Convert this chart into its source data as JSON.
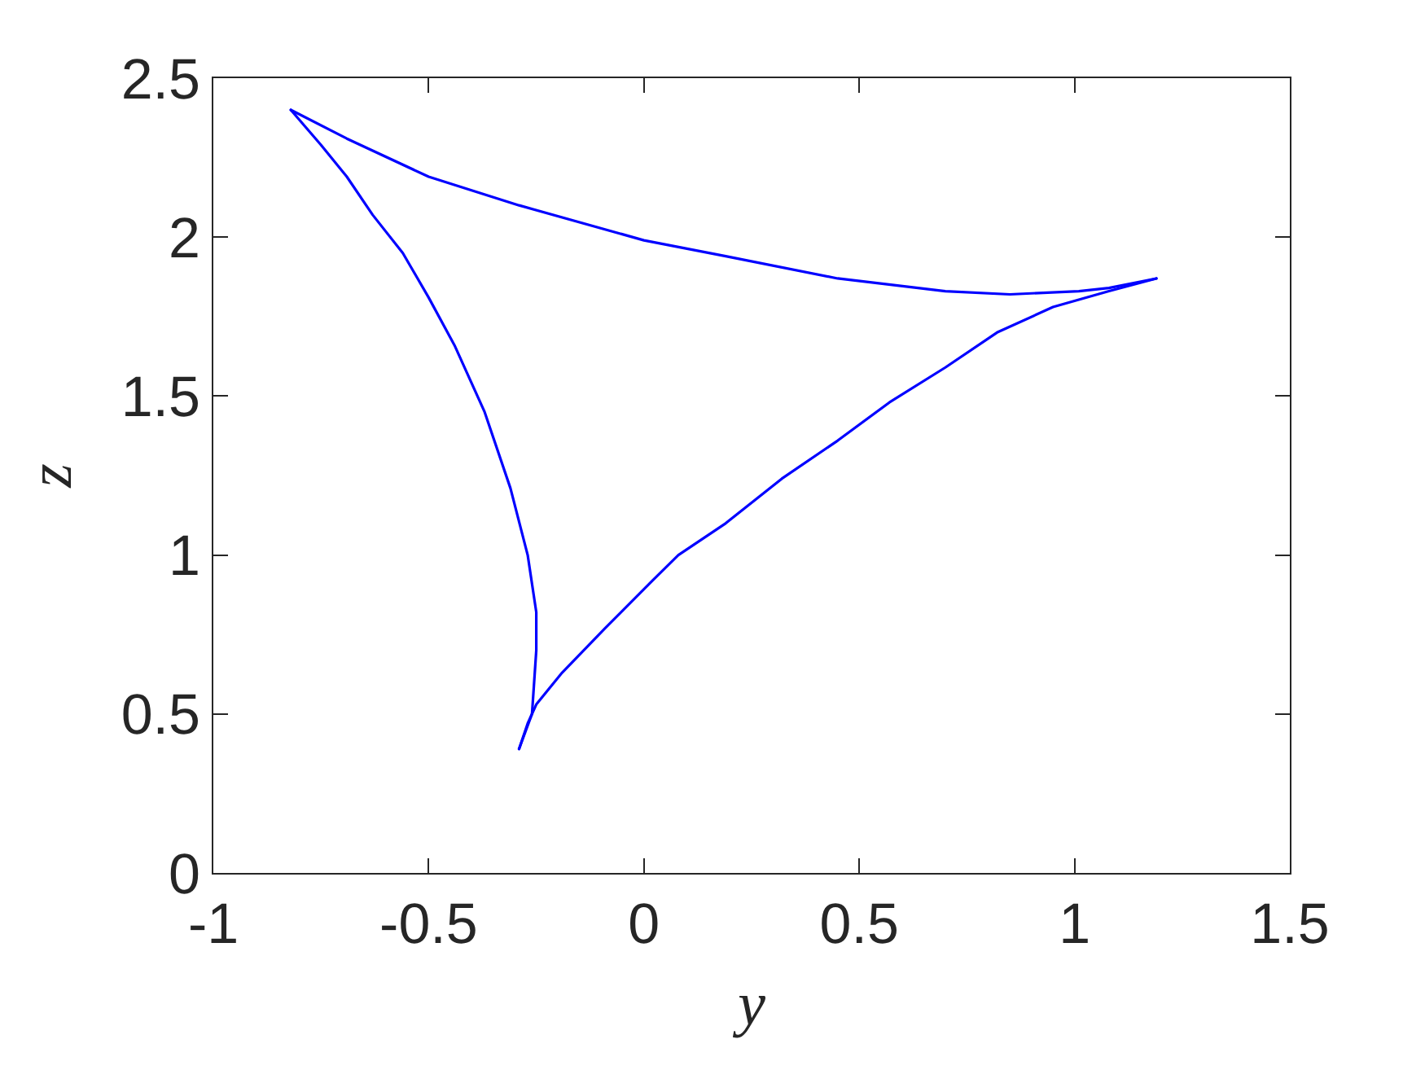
{
  "chart_data": {
    "type": "line",
    "xlabel": "y",
    "ylabel": "z",
    "series": [
      {
        "color": "#0000ff",
        "x": [
          -0.82,
          -0.69,
          -0.5,
          -0.29,
          0.0,
          0.19,
          0.45,
          0.7,
          0.85,
          1.01,
          1.08,
          1.19
        ],
        "values": [
          2.4,
          2.31,
          2.19,
          2.1,
          1.99,
          1.94,
          1.87,
          1.83,
          1.82,
          1.83,
          1.84,
          1.87
        ]
      },
      {
        "color": "#0000ff",
        "x": [
          1.19,
          1.08,
          0.95,
          0.82,
          0.7,
          0.57,
          0.45,
          0.32,
          0.19,
          0.08,
          0.02,
          -0.09,
          -0.19,
          -0.25,
          -0.27,
          -0.29
        ],
        "values": [
          1.87,
          1.83,
          1.78,
          1.7,
          1.59,
          1.48,
          1.36,
          1.24,
          1.1,
          1.0,
          0.92,
          0.77,
          0.63,
          0.53,
          0.47,
          0.39
        ]
      },
      {
        "color": "#0000ff",
        "x": [
          -0.29,
          -0.26,
          -0.25,
          -0.25,
          -0.27,
          -0.31,
          -0.37,
          -0.44,
          -0.5,
          -0.56,
          -0.63,
          -0.69,
          -0.75,
          -0.82
        ],
        "values": [
          0.39,
          0.5,
          0.7,
          0.82,
          1.0,
          1.21,
          1.45,
          1.66,
          1.81,
          1.95,
          2.07,
          2.19,
          2.29,
          2.4
        ]
      }
    ],
    "xlim": [
      -1,
      1.5
    ],
    "xticks": [
      -1,
      -0.5,
      0,
      0.5,
      1,
      1.5
    ],
    "ylim": [
      0,
      2.5
    ],
    "yticks": [
      0,
      0.5,
      1,
      1.5,
      2,
      2.5
    ]
  }
}
